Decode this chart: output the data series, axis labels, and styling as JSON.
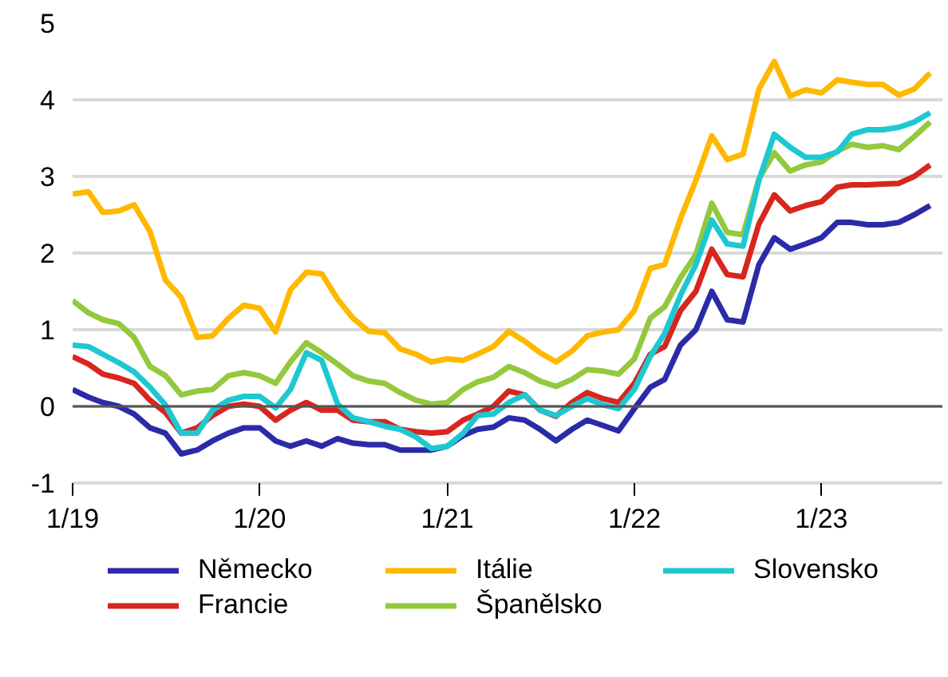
{
  "chart_data": {
    "type": "line",
    "x": [
      "2019-01",
      "2019-02",
      "2019-03",
      "2019-04",
      "2019-05",
      "2019-06",
      "2019-07",
      "2019-08",
      "2019-09",
      "2019-10",
      "2019-11",
      "2019-12",
      "2020-01",
      "2020-02",
      "2020-03",
      "2020-04",
      "2020-05",
      "2020-06",
      "2020-07",
      "2020-08",
      "2020-09",
      "2020-10",
      "2020-11",
      "2020-12",
      "2021-01",
      "2021-02",
      "2021-03",
      "2021-04",
      "2021-05",
      "2021-06",
      "2021-07",
      "2021-08",
      "2021-09",
      "2021-10",
      "2021-11",
      "2021-12",
      "2022-01",
      "2022-02",
      "2022-03",
      "2022-04",
      "2022-05",
      "2022-06",
      "2022-07",
      "2022-08",
      "2022-09",
      "2022-10",
      "2022-11",
      "2022-12",
      "2023-01",
      "2023-02",
      "2023-03",
      "2023-04",
      "2023-05",
      "2023-06",
      "2023-07",
      "2023-08"
    ],
    "series": [
      {
        "name": "Německo",
        "color": "#2b2ba8",
        "values": [
          0.22,
          0.12,
          0.05,
          0.0,
          -0.1,
          -0.28,
          -0.35,
          -0.62,
          -0.57,
          -0.45,
          -0.35,
          -0.28,
          -0.28,
          -0.45,
          -0.52,
          -0.45,
          -0.52,
          -0.42,
          -0.48,
          -0.5,
          -0.5,
          -0.57,
          -0.57,
          -0.57,
          -0.52,
          -0.38,
          -0.3,
          -0.27,
          -0.15,
          -0.18,
          -0.3,
          -0.45,
          -0.3,
          -0.18,
          -0.25,
          -0.32,
          -0.03,
          0.25,
          0.35,
          0.8,
          1.0,
          1.5,
          1.13,
          1.1,
          1.85,
          2.2,
          2.05,
          2.12,
          2.2,
          2.4,
          2.4,
          2.37,
          2.37,
          2.4,
          2.5,
          2.62
        ]
      },
      {
        "name": "Francie",
        "color": "#d7261e",
        "values": [
          0.65,
          0.55,
          0.42,
          0.37,
          0.3,
          0.08,
          -0.08,
          -0.35,
          -0.28,
          -0.12,
          0.0,
          0.03,
          0.0,
          -0.18,
          -0.05,
          0.05,
          -0.05,
          -0.05,
          -0.18,
          -0.2,
          -0.2,
          -0.3,
          -0.33,
          -0.35,
          -0.33,
          -0.18,
          -0.1,
          0.0,
          0.2,
          0.15,
          -0.05,
          -0.13,
          0.05,
          0.18,
          0.1,
          0.05,
          0.3,
          0.68,
          0.78,
          1.25,
          1.5,
          2.05,
          1.72,
          1.69,
          2.38,
          2.76,
          2.55,
          2.62,
          2.67,
          2.86,
          2.89,
          2.89,
          2.9,
          2.91,
          3.0,
          3.15
        ]
      },
      {
        "name": "Itálie",
        "color": "#ffb800",
        "values": [
          2.77,
          2.8,
          2.53,
          2.55,
          2.63,
          2.28,
          1.65,
          1.42,
          0.9,
          0.92,
          1.15,
          1.32,
          1.28,
          0.97,
          1.52,
          1.75,
          1.73,
          1.4,
          1.15,
          0.98,
          0.96,
          0.75,
          0.68,
          0.58,
          0.62,
          0.6,
          0.68,
          0.78,
          0.98,
          0.85,
          0.7,
          0.58,
          0.72,
          0.92,
          0.97,
          1.0,
          1.25,
          1.8,
          1.85,
          2.45,
          2.95,
          3.53,
          3.22,
          3.29,
          4.14,
          4.5,
          4.05,
          4.13,
          4.09,
          4.26,
          4.23,
          4.2,
          4.2,
          4.06,
          4.14,
          4.35
        ]
      },
      {
        "name": "Španělsko",
        "color": "#94c83d",
        "values": [
          1.38,
          1.22,
          1.13,
          1.08,
          0.9,
          0.52,
          0.4,
          0.15,
          0.2,
          0.22,
          0.4,
          0.44,
          0.4,
          0.3,
          0.58,
          0.83,
          0.7,
          0.55,
          0.4,
          0.33,
          0.3,
          0.18,
          0.08,
          0.03,
          0.05,
          0.22,
          0.32,
          0.38,
          0.52,
          0.44,
          0.33,
          0.26,
          0.35,
          0.48,
          0.46,
          0.42,
          0.62,
          1.15,
          1.3,
          1.68,
          1.98,
          2.65,
          2.27,
          2.24,
          2.97,
          3.31,
          3.07,
          3.15,
          3.19,
          3.33,
          3.42,
          3.38,
          3.4,
          3.35,
          3.52,
          3.71
        ]
      },
      {
        "name": "Slovensko",
        "color": "#1ec8d2",
        "values": [
          0.8,
          0.78,
          0.68,
          0.57,
          0.45,
          0.25,
          0.02,
          -0.35,
          -0.35,
          -0.05,
          0.08,
          0.13,
          0.13,
          -0.02,
          0.22,
          0.7,
          0.6,
          0.03,
          -0.15,
          -0.2,
          -0.26,
          -0.3,
          -0.4,
          -0.55,
          -0.52,
          -0.35,
          -0.12,
          -0.1,
          0.05,
          0.15,
          -0.05,
          -0.12,
          0.0,
          0.1,
          0.02,
          -0.03,
          0.22,
          0.65,
          0.95,
          1.45,
          1.85,
          2.43,
          2.12,
          2.09,
          2.95,
          3.55,
          3.38,
          3.25,
          3.25,
          3.32,
          3.55,
          3.61,
          3.61,
          3.64,
          3.71,
          3.83
        ]
      }
    ],
    "xlim": [
      "2019-01-01",
      "2023-08-25"
    ],
    "xticks": [
      {
        "value": "2019-01",
        "label": "1/19"
      },
      {
        "value": "2020-01",
        "label": "1/20"
      },
      {
        "value": "2021-01",
        "label": "1/21"
      },
      {
        "value": "2022-01",
        "label": "1/22"
      },
      {
        "value": "2023-01",
        "label": "1/23"
      }
    ],
    "ylim": [
      -1,
      5
    ],
    "yticks": [
      -1,
      0,
      1,
      2,
      3,
      4,
      5
    ],
    "ref_lines": [
      {
        "axis": "y",
        "value": 0,
        "color": "#555555"
      }
    ],
    "grid": "y",
    "legend": "bottom",
    "marker": "none",
    "line_style": "solid"
  }
}
